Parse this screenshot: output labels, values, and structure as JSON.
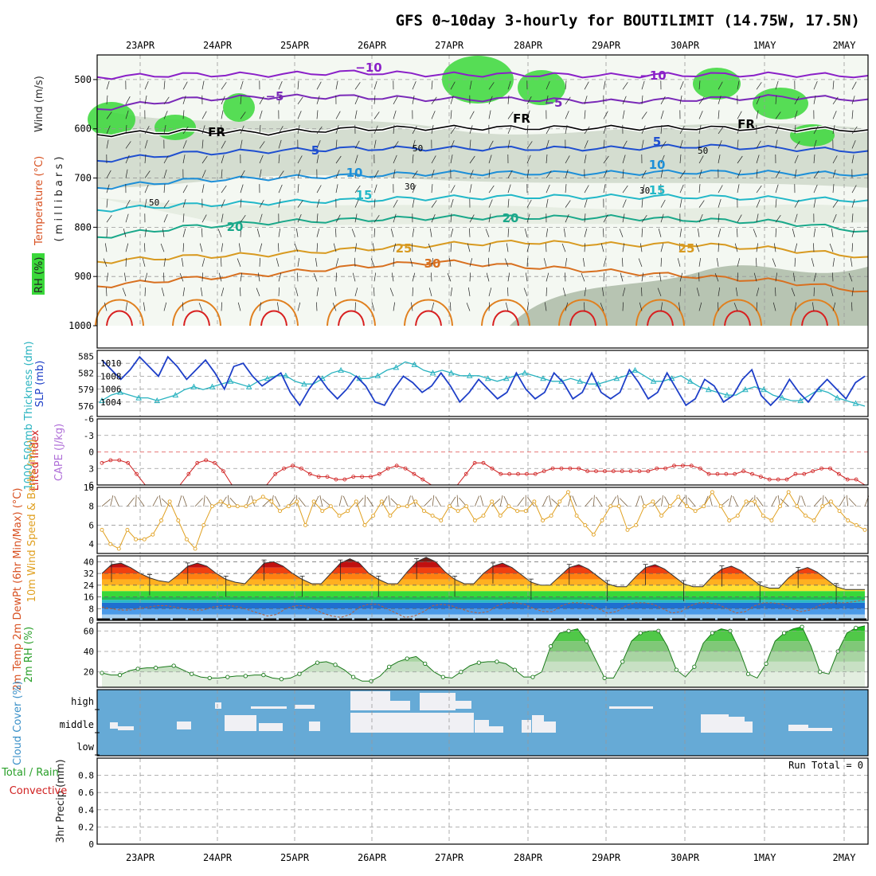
{
  "title": "GFS 0~10day 3-hourly for BOUTILIMIT (14.75W, 17.5N)",
  "chart_data": [
    {
      "type": "line",
      "name": "upper-air cross-section",
      "dates": [
        "23APR",
        "24APR",
        "25APR",
        "26APR",
        "27APR",
        "28APR",
        "29APR",
        "30APR",
        "1MAY",
        "2MAY"
      ],
      "ylabel_parts": [
        "RH (%)",
        "Temperature (°C)",
        "Wind (m/s)"
      ],
      "ylabel_unit": "( m i l l i b a r s )",
      "yticks": [
        500,
        600,
        700,
        800,
        900,
        1000
      ],
      "ylim": [
        1000,
        450
      ],
      "isotherms": [
        {
          "label": "−10",
          "value": -10,
          "levels_mb": [
            495,
            490,
            490,
            485,
            490,
            490,
            492,
            490,
            490,
            492
          ]
        },
        {
          "label": "−5",
          "value": -5,
          "levels_mb": [
            560,
            540,
            535,
            535,
            540,
            540,
            545,
            540,
            535,
            540
          ]
        },
        {
          "label": "FR",
          "value": 0,
          "levels_mb": [
            612,
            605,
            608,
            600,
            598,
            598,
            598,
            598,
            600,
            602
          ]
        },
        {
          "label": "5",
          "value": 5,
          "levels_mb": [
            665,
            650,
            645,
            640,
            640,
            640,
            640,
            635,
            640,
            645
          ]
        },
        {
          "label": "10",
          "value": 10,
          "levels_mb": [
            720,
            705,
            700,
            695,
            690,
            690,
            690,
            688,
            690,
            692
          ]
        },
        {
          "label": "15",
          "value": 15,
          "levels_mb": [
            765,
            755,
            750,
            745,
            740,
            738,
            738,
            738,
            742,
            745
          ]
        },
        {
          "label": "20",
          "value": 20,
          "levels_mb": [
            820,
            800,
            790,
            785,
            780,
            780,
            780,
            785,
            790,
            808
          ]
        },
        {
          "label": "25",
          "value": 25,
          "levels_mb": [
            870,
            860,
            855,
            845,
            835,
            830,
            835,
            835,
            845,
            860
          ]
        },
        {
          "label": "30",
          "value": 30,
          "levels_mb": [
            920,
            905,
            895,
            880,
            870,
            880,
            890,
            900,
            910,
            930
          ]
        }
      ],
      "labels_shown": [
        "−10",
        "−10",
        "−5",
        "−5",
        "FR",
        "FR",
        "FR",
        "5",
        "5",
        "10",
        "10",
        "15",
        "15",
        "20",
        "20",
        "25",
        "25",
        "30",
        "50",
        "50",
        "30",
        "30",
        "50"
      ]
    },
    {
      "type": "line",
      "name": "SLP and thickness",
      "ylabel_left": "1000-500mb Thickness (dm)",
      "ylabel_right": "SLP (mb)",
      "yticks_left": [
        576,
        579,
        582,
        585
      ],
      "yticks_right": [
        1004,
        1006,
        1008,
        1010
      ],
      "series": [
        {
          "name": "SLP (mb)",
          "color": "#1e3fc8",
          "values": [
            1010.5,
            1009,
            1007.5,
            1009,
            1011,
            1009.5,
            1008,
            1011,
            1009.5,
            1007.5,
            1009,
            1010.5,
            1008.5,
            1006,
            1009.5,
            1010,
            1008,
            1006.5,
            1007.5,
            1008.5,
            1005.5,
            1003.5,
            1006,
            1008,
            1006,
            1004.5,
            1006,
            1008,
            1006.5,
            1004,
            1003.5,
            1006,
            1008,
            1007,
            1005.5,
            1006.5,
            1008.5,
            1006.5,
            1004,
            1005.5,
            1007.5,
            1006,
            1004.5,
            1005.5,
            1008.5,
            1006,
            1004.5,
            1005.5,
            1008.5,
            1007,
            1004.5,
            1005.5,
            1008.5,
            1005.5,
            1004.5,
            1005.5,
            1009,
            1007,
            1004.5,
            1005.5,
            1008.5,
            1006,
            1003.5,
            1004.5,
            1007.5,
            1006.5,
            1004,
            1005,
            1007.5,
            1009,
            1005,
            1003.5,
            1005,
            1007.5,
            1005.5,
            1004,
            1006,
            1007.5,
            1006,
            1004.5,
            1007,
            1008
          ]
        },
        {
          "name": "1000-500mb Thickness (dm)",
          "color": "#2ab3c0",
          "values": [
            577,
            578,
            578.5,
            578,
            577.5,
            577.5,
            577,
            577.5,
            578,
            579,
            579.5,
            579,
            579.5,
            580,
            580.5,
            580,
            579.5,
            580.5,
            581,
            581.5,
            581.5,
            580.5,
            580,
            580,
            581,
            582,
            582.5,
            582,
            581,
            581,
            581.5,
            582.5,
            583,
            584,
            583.5,
            582.5,
            582,
            582.5,
            582,
            581.5,
            581.5,
            581.5,
            581,
            580.5,
            581,
            581.5,
            582,
            581.5,
            581,
            580.5,
            580.5,
            581,
            580.5,
            580,
            580,
            580.5,
            581,
            581.5,
            582.5,
            581.5,
            580.5,
            580.5,
            581,
            581.5,
            580.5,
            579.5,
            579,
            578.5,
            578,
            578,
            579,
            579.5,
            579,
            578,
            577.5,
            577,
            577,
            578,
            579,
            578.5,
            577.5,
            577,
            576.5,
            576
          ]
        }
      ]
    },
    {
      "type": "line",
      "name": "Lifted Index and CAPE",
      "ylabel_left": "Lifted Index",
      "ylabel_right": "CAPE (J/kg)",
      "yticks": [
        -6,
        -3,
        0,
        3,
        6
      ],
      "ylim": [
        -6,
        6
      ],
      "series": [
        {
          "name": "Lifted Index",
          "color": "#d02020",
          "values": [
            2,
            1.5,
            1.5,
            2,
            4,
            6.5,
            7,
            7,
            7,
            6,
            4,
            2,
            1.5,
            2,
            3.5,
            6,
            7,
            7,
            6.5,
            6,
            4,
            3,
            2.5,
            3,
            4,
            4.5,
            4.5,
            5,
            5,
            4.5,
            4.5,
            4.5,
            4,
            3,
            2.5,
            3,
            4,
            5,
            6.5,
            7,
            7,
            6,
            4,
            2,
            2,
            3,
            4,
            4,
            4,
            4,
            4,
            3.5,
            3,
            3,
            3,
            3,
            3.5,
            3.5,
            3.5,
            3.5,
            3.5,
            3.5,
            3.5,
            3.5,
            3,
            3,
            2.5,
            2.5,
            2.5,
            3,
            4,
            4,
            4,
            4,
            3.5,
            4,
            4.5,
            5,
            5,
            5,
            4,
            4,
            3.5,
            3,
            3,
            4,
            5,
            5,
            6
          ]
        }
      ]
    },
    {
      "type": "line",
      "name": "10m Wind",
      "ylabel": "10m Wind Speed & Barbs (m/s)",
      "yticks": [
        4,
        6,
        8,
        10
      ],
      "ylim": [
        3,
        10
      ],
      "series": [
        {
          "name": "10m Wind Speed",
          "color": "#e0a020",
          "values": [
            5.5,
            4,
            3.5,
            5.5,
            4.5,
            4.5,
            5,
            6.5,
            8.5,
            6.5,
            4.5,
            3.5,
            6,
            8,
            8.5,
            8,
            8,
            8,
            8.5,
            9,
            8.5,
            7.5,
            8,
            8.5,
            6,
            8.5,
            7.5,
            8,
            7,
            7.5,
            8.5,
            6,
            7,
            8.5,
            7,
            8,
            8,
            8.5,
            7.5,
            7,
            6.5,
            8,
            7.5,
            8,
            6.5,
            7,
            8.5,
            7,
            8,
            7.5,
            7.5,
            8.5,
            6.5,
            7,
            8.5,
            9.5,
            7,
            6,
            5,
            6.5,
            8,
            8,
            5.5,
            6,
            8,
            8.5,
            7,
            8,
            9,
            8,
            7.5,
            8,
            9.5,
            8,
            6.5,
            7,
            8.5,
            8.5,
            7,
            6.5,
            8,
            9.5,
            8,
            7,
            6.5,
            8,
            8.5,
            7.5,
            6.5,
            6,
            5.5
          ]
        }
      ]
    },
    {
      "type": "area",
      "name": "2m Temperature and Dew Point",
      "ylabel": "2m Temp 2m DewPt (6hr Min/Max) (°C)",
      "yticks": [
        0,
        8,
        16,
        24,
        32,
        40
      ],
      "ylim": [
        0,
        44
      ],
      "series": [
        {
          "name": "2m Temp",
          "values": [
            32,
            38,
            39,
            36,
            32,
            29,
            27,
            26,
            31,
            37,
            39,
            37,
            32,
            28,
            26,
            25,
            32,
            39,
            40,
            37,
            32,
            28,
            25,
            25,
            32,
            39,
            42,
            39,
            32,
            28,
            25,
            25,
            33,
            40,
            43,
            40,
            33,
            28,
            25,
            25,
            32,
            37,
            39,
            36,
            31,
            26,
            24,
            24,
            30,
            36,
            38,
            35,
            30,
            25,
            23,
            23,
            30,
            36,
            38,
            35,
            30,
            25,
            23,
            23,
            30,
            35,
            37,
            34,
            29,
            24,
            22,
            22,
            29,
            34,
            36,
            33,
            28,
            23,
            21,
            21,
            21
          ]
        },
        {
          "name": "2m DewPt",
          "values": [
            9,
            8,
            7,
            7,
            8,
            9,
            10,
            10,
            9,
            8,
            7,
            7,
            9,
            10,
            10,
            9,
            7,
            5,
            3,
            4,
            8,
            10,
            10,
            8,
            5,
            3,
            2,
            4,
            9,
            11,
            11,
            8,
            5,
            2,
            3,
            6,
            10,
            11,
            10,
            8,
            6,
            5,
            6,
            10,
            12,
            12,
            11,
            8,
            6,
            6,
            10,
            12,
            12,
            11,
            8,
            5,
            6,
            10,
            12,
            12,
            11,
            8,
            5,
            6,
            10,
            12,
            12,
            11,
            8,
            5,
            6,
            10,
            12,
            12,
            11,
            8,
            6,
            7,
            10,
            12,
            12,
            12,
            13,
            14
          ]
        }
      ]
    },
    {
      "type": "area",
      "name": "2m RH",
      "ylabel": "2m RH (%)",
      "yticks": [
        20,
        40,
        60
      ],
      "ylim": [
        5,
        68
      ],
      "series": [
        {
          "name": "2m RH",
          "color": "#2aa02a",
          "values": [
            19,
            17,
            17,
            21,
            23,
            24,
            24,
            25,
            26,
            22,
            18,
            15,
            14,
            14,
            15,
            16,
            16,
            17,
            17,
            14,
            13,
            14,
            18,
            24,
            29,
            30,
            27,
            22,
            15,
            11,
            11,
            16,
            25,
            30,
            33,
            35,
            28,
            20,
            15,
            14,
            20,
            26,
            29,
            30,
            30,
            28,
            22,
            15,
            15,
            20,
            45,
            58,
            60,
            62,
            50,
            32,
            14,
            14,
            30,
            50,
            58,
            60,
            60,
            45,
            22,
            15,
            25,
            48,
            58,
            62,
            60,
            42,
            18,
            14,
            28,
            50,
            58,
            62,
            64,
            45,
            20,
            18,
            40,
            58,
            63,
            65
          ]
        }
      ]
    },
    {
      "type": "heatmap",
      "name": "Cloud Cover",
      "ylabel": "Cloud Cover (%)",
      "layers": [
        "high",
        "middle",
        "low"
      ]
    },
    {
      "type": "bar",
      "name": "3hr Precip",
      "ylabel_parts": [
        "Total / Rain",
        "Convective",
        "3hr Precip (mm)"
      ],
      "yticks": [
        0,
        0.2,
        0.4,
        0.6,
        0.8
      ],
      "ylim": [
        0,
        1
      ],
      "values": [],
      "run_total": "Run Total = 0"
    }
  ]
}
